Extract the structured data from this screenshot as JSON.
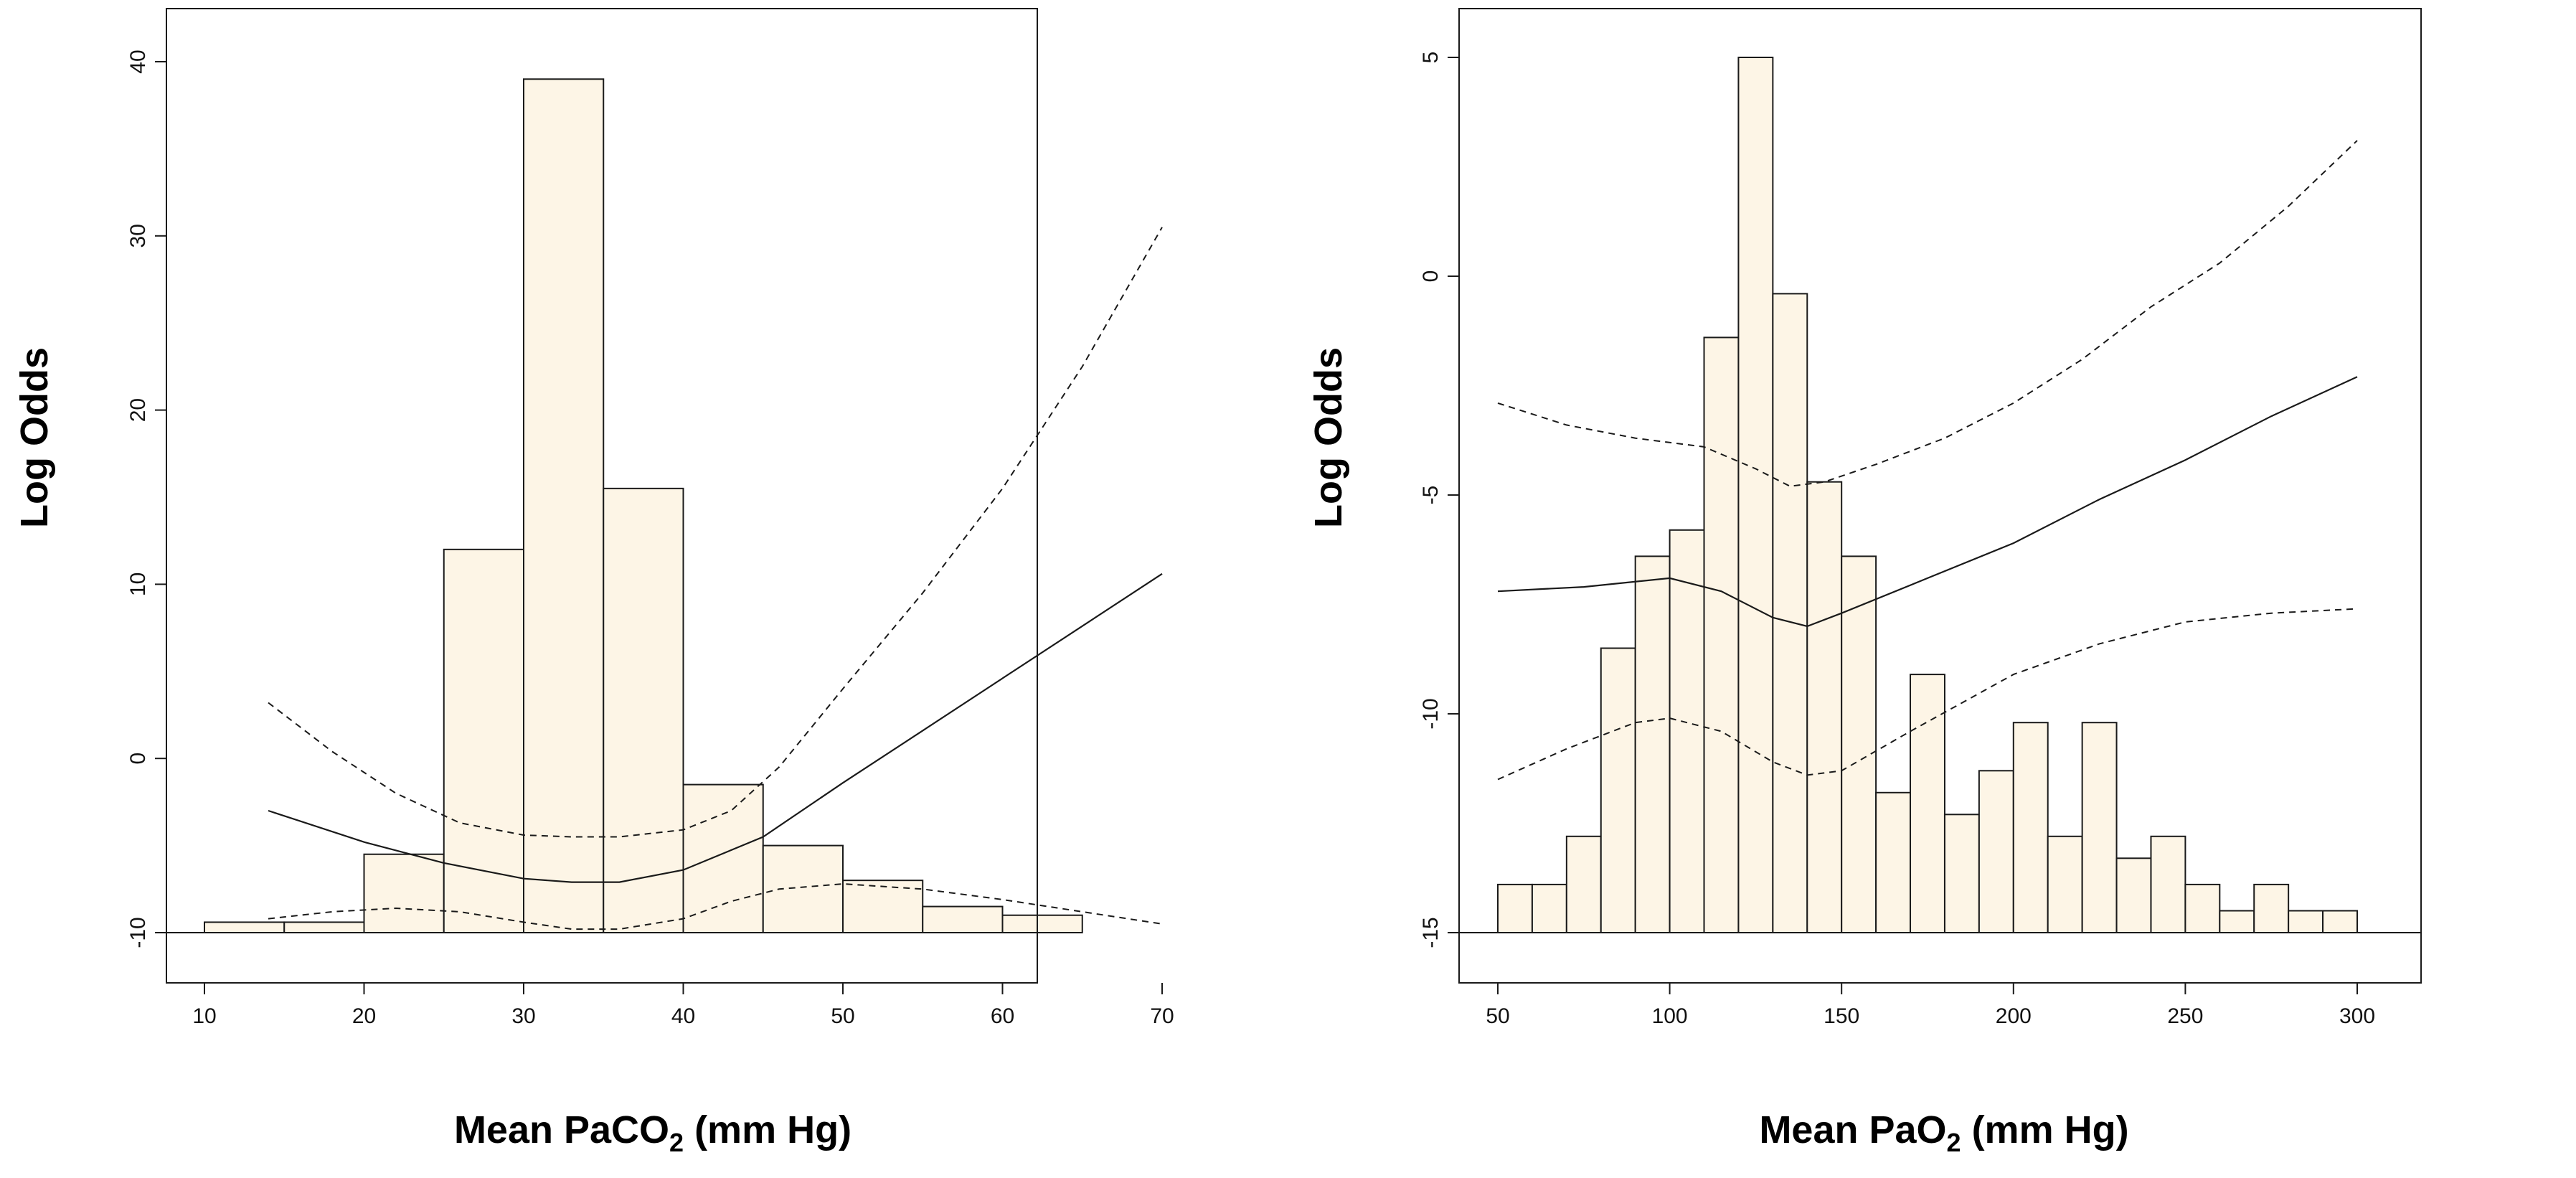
{
  "colors": {
    "bar_fill": "#fdf5e6",
    "line": "#1a1a1a"
  },
  "chart_data": [
    {
      "type": "bar",
      "subtype": "histogram_with_spline",
      "title": "",
      "xlabel_prefix": "Mean PaCO",
      "xlabel_sub": "2",
      "xlabel_suffix": " (mm Hg)",
      "ylabel": "Log Odds",
      "xlim": [
        10,
        70
      ],
      "ylim": [
        -10,
        40
      ],
      "baseline": -10,
      "x_ticks": [
        "10",
        "20",
        "30",
        "40",
        "50",
        "60",
        "70"
      ],
      "x_tick_values": [
        10,
        20,
        30,
        40,
        50,
        60,
        70
      ],
      "y_ticks": [
        "-10",
        "0",
        "10",
        "20",
        "30",
        "40"
      ],
      "y_tick_values": [
        -10,
        0,
        10,
        20,
        30,
        40
      ],
      "bins": [
        {
          "x0": 10,
          "x1": 15,
          "top": -9.4
        },
        {
          "x0": 15,
          "x1": 20,
          "top": -9.4
        },
        {
          "x0": 20,
          "x1": 25,
          "top": -5.5
        },
        {
          "x0": 25,
          "x1": 30,
          "top": 12
        },
        {
          "x0": 30,
          "x1": 35,
          "top": 39
        },
        {
          "x0": 35,
          "x1": 40,
          "top": 15.5
        },
        {
          "x0": 40,
          "x1": 45,
          "top": -1.5
        },
        {
          "x0": 45,
          "x1": 50,
          "top": -5
        },
        {
          "x0": 50,
          "x1": 55,
          "top": -7
        },
        {
          "x0": 55,
          "x1": 60,
          "top": -8.5
        },
        {
          "x0": 60,
          "x1": 65,
          "top": -9
        }
      ],
      "series": [
        {
          "name": "estimate",
          "style": "solid",
          "x": [
            14,
            20,
            25,
            30,
            33,
            36,
            40,
            45,
            50,
            55,
            60,
            65,
            70
          ],
          "y": [
            -3,
            -4.8,
            -6,
            -6.9,
            -7.1,
            -7.1,
            -6.4,
            -4.5,
            -1.4,
            1.6,
            4.6,
            7.6,
            10.6
          ]
        },
        {
          "name": "upper 95% CI",
          "style": "dashed",
          "x": [
            14,
            18,
            22,
            26,
            30,
            33,
            36,
            40,
            43,
            46,
            50,
            55,
            60,
            65,
            70
          ],
          "y": [
            3.2,
            0.4,
            -2,
            -3.7,
            -4.4,
            -4.5,
            -4.5,
            -4.1,
            -3,
            -0.5,
            4,
            9.5,
            15.5,
            22.5,
            30.5
          ]
        },
        {
          "name": "lower 95% CI",
          "style": "dashed",
          "x": [
            14,
            18,
            22,
            26,
            30,
            33,
            36,
            40,
            43,
            46,
            50,
            55,
            60,
            65,
            70
          ],
          "y": [
            -9.2,
            -8.8,
            -8.6,
            -8.8,
            -9.4,
            -9.8,
            -9.8,
            -9.2,
            -8.2,
            -7.5,
            -7.2,
            -7.5,
            -8.1,
            -8.8,
            -9.5
          ]
        }
      ]
    },
    {
      "type": "bar",
      "subtype": "histogram_with_spline",
      "title": "",
      "xlabel_prefix": "Mean PaO",
      "xlabel_sub": "2",
      "xlabel_suffix": " (mm Hg)",
      "ylabel": "Log Odds",
      "xlim": [
        50,
        300
      ],
      "ylim": [
        -15,
        5
      ],
      "baseline": -15,
      "x_ticks": [
        "50",
        "100",
        "150",
        "200",
        "250",
        "300"
      ],
      "x_tick_values": [
        50,
        100,
        150,
        200,
        250,
        300
      ],
      "y_ticks": [
        "-15",
        "-10",
        "-5",
        "0",
        "5"
      ],
      "y_tick_values": [
        -15,
        -10,
        -5,
        0,
        5
      ],
      "bins": [
        {
          "x0": 50,
          "x1": 60,
          "top": -13.9
        },
        {
          "x0": 60,
          "x1": 70,
          "top": -13.9
        },
        {
          "x0": 70,
          "x1": 80,
          "top": -12.8
        },
        {
          "x0": 80,
          "x1": 90,
          "top": -8.5
        },
        {
          "x0": 90,
          "x1": 100,
          "top": -6.4
        },
        {
          "x0": 100,
          "x1": 110,
          "top": -5.8
        },
        {
          "x0": 110,
          "x1": 120,
          "top": -1.4
        },
        {
          "x0": 120,
          "x1": 130,
          "top": 5
        },
        {
          "x0": 130,
          "x1": 140,
          "top": -0.4
        },
        {
          "x0": 140,
          "x1": 150,
          "top": -4.7
        },
        {
          "x0": 150,
          "x1": 160,
          "top": -6.4
        },
        {
          "x0": 160,
          "x1": 170,
          "top": -11.8
        },
        {
          "x0": 170,
          "x1": 180,
          "top": -9.1
        },
        {
          "x0": 180,
          "x1": 190,
          "top": -12.3
        },
        {
          "x0": 190,
          "x1": 200,
          "top": -11.3
        },
        {
          "x0": 200,
          "x1": 210,
          "top": -10.2
        },
        {
          "x0": 210,
          "x1": 220,
          "top": -12.8
        },
        {
          "x0": 220,
          "x1": 230,
          "top": -10.2
        },
        {
          "x0": 230,
          "x1": 240,
          "top": -13.3
        },
        {
          "x0": 240,
          "x1": 250,
          "top": -12.8
        },
        {
          "x0": 250,
          "x1": 260,
          "top": -13.9
        },
        {
          "x0": 260,
          "x1": 270,
          "top": -14.5
        },
        {
          "x0": 270,
          "x1": 280,
          "top": -13.9
        },
        {
          "x0": 280,
          "x1": 290,
          "top": -14.5
        },
        {
          "x0": 290,
          "x1": 300,
          "top": -14.5
        }
      ],
      "series": [
        {
          "name": "estimate",
          "style": "solid",
          "x": [
            50,
            75,
            100,
            115,
            130,
            140,
            150,
            175,
            200,
            225,
            250,
            275,
            300
          ],
          "y": [
            -7.2,
            -7.1,
            -6.9,
            -7.2,
            -7.8,
            -8.0,
            -7.7,
            -6.9,
            -6.1,
            -5.1,
            -4.2,
            -3.2,
            -2.3
          ]
        },
        {
          "name": "upper 95% CI",
          "style": "dashed",
          "x": [
            50,
            70,
            90,
            110,
            125,
            135,
            145,
            160,
            180,
            200,
            220,
            240,
            260,
            280,
            300
          ],
          "y": [
            -2.9,
            -3.4,
            -3.7,
            -3.9,
            -4.4,
            -4.8,
            -4.7,
            -4.3,
            -3.7,
            -2.9,
            -1.9,
            -0.7,
            0.3,
            1.6,
            3.1
          ]
        },
        {
          "name": "lower 95% CI",
          "style": "dashed",
          "x": [
            50,
            70,
            90,
            100,
            115,
            130,
            140,
            150,
            170,
            200,
            225,
            250,
            275,
            300
          ],
          "y": [
            -11.5,
            -10.8,
            -10.2,
            -10.1,
            -10.4,
            -11.1,
            -11.4,
            -11.3,
            -10.4,
            -9.1,
            -8.4,
            -7.9,
            -7.7,
            -7.6
          ]
        }
      ]
    }
  ]
}
